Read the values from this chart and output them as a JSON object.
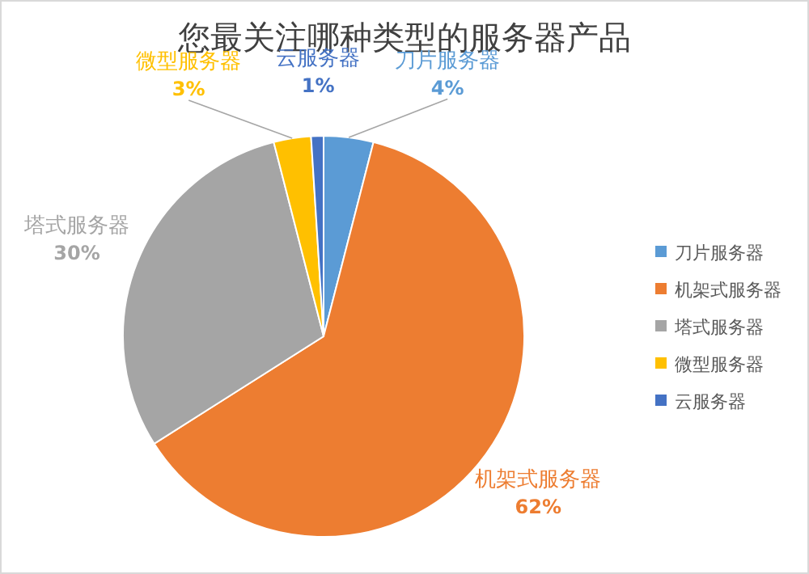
{
  "chart_data": {
    "type": "pie",
    "title": "您最关注哪种类型的服务器产品",
    "categories": [
      "刀片服务器",
      "机架式服务器",
      "塔式服务器",
      "微型服务器",
      "云服务器"
    ],
    "values": [
      4,
      62,
      30,
      3,
      1
    ],
    "colors": [
      "#5b9bd5",
      "#ed7d31",
      "#a5a5a5",
      "#ffc000",
      "#4472c4"
    ],
    "value_labels": [
      "4%",
      "62%",
      "30%",
      "3%",
      "1%"
    ],
    "legend": "right"
  }
}
